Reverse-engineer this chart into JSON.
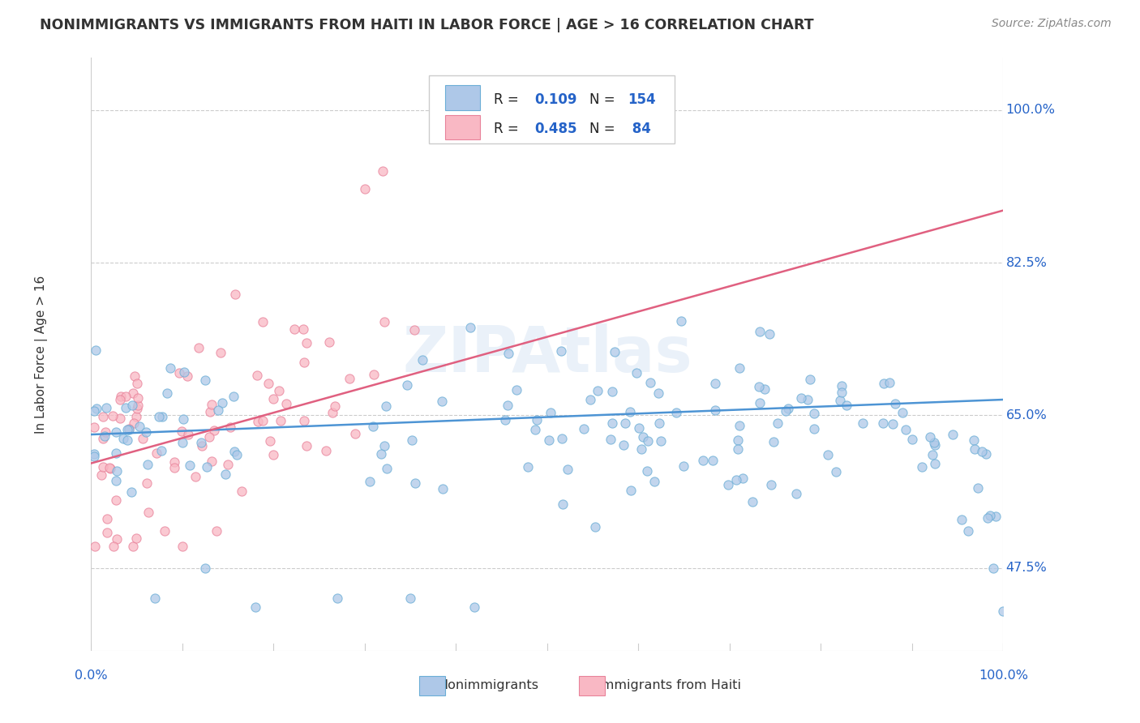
{
  "title": "NONIMMIGRANTS VS IMMIGRANTS FROM HAITI IN LABOR FORCE | AGE > 16 CORRELATION CHART",
  "source": "Source: ZipAtlas.com",
  "ylabel": "In Labor Force | Age > 16",
  "xlim": [
    0,
    1
  ],
  "ylim": [
    0.38,
    1.06
  ],
  "yticks": [
    0.475,
    0.65,
    0.825,
    1.0
  ],
  "ytick_labels": [
    "47.5%",
    "65.0%",
    "82.5%",
    "100.0%"
  ],
  "legend_R1": "R = ",
  "legend_V1": "0.109",
  "legend_N1_label": "N = ",
  "legend_N1": "154",
  "legend_R2": "R = ",
  "legend_V2": "0.485",
  "legend_N2_label": "N = ",
  "legend_N2": " 84",
  "blue_color": "#aec8e8",
  "blue_edge": "#6baed6",
  "pink_color": "#f9b8c4",
  "pink_edge": "#e8829a",
  "blue_line_color": "#4d94d4",
  "pink_line_color": "#e06080",
  "value_color": "#2563c8",
  "label_color": "#222222",
  "tick_label_color": "#2563c8",
  "source_color": "#888888",
  "watermark": "ZIPAtlas",
  "blue_line_x": [
    0.0,
    1.0
  ],
  "blue_line_y": [
    0.628,
    0.668
  ],
  "pink_line_x": [
    0.0,
    1.0
  ],
  "pink_line_y": [
    0.595,
    0.885
  ]
}
